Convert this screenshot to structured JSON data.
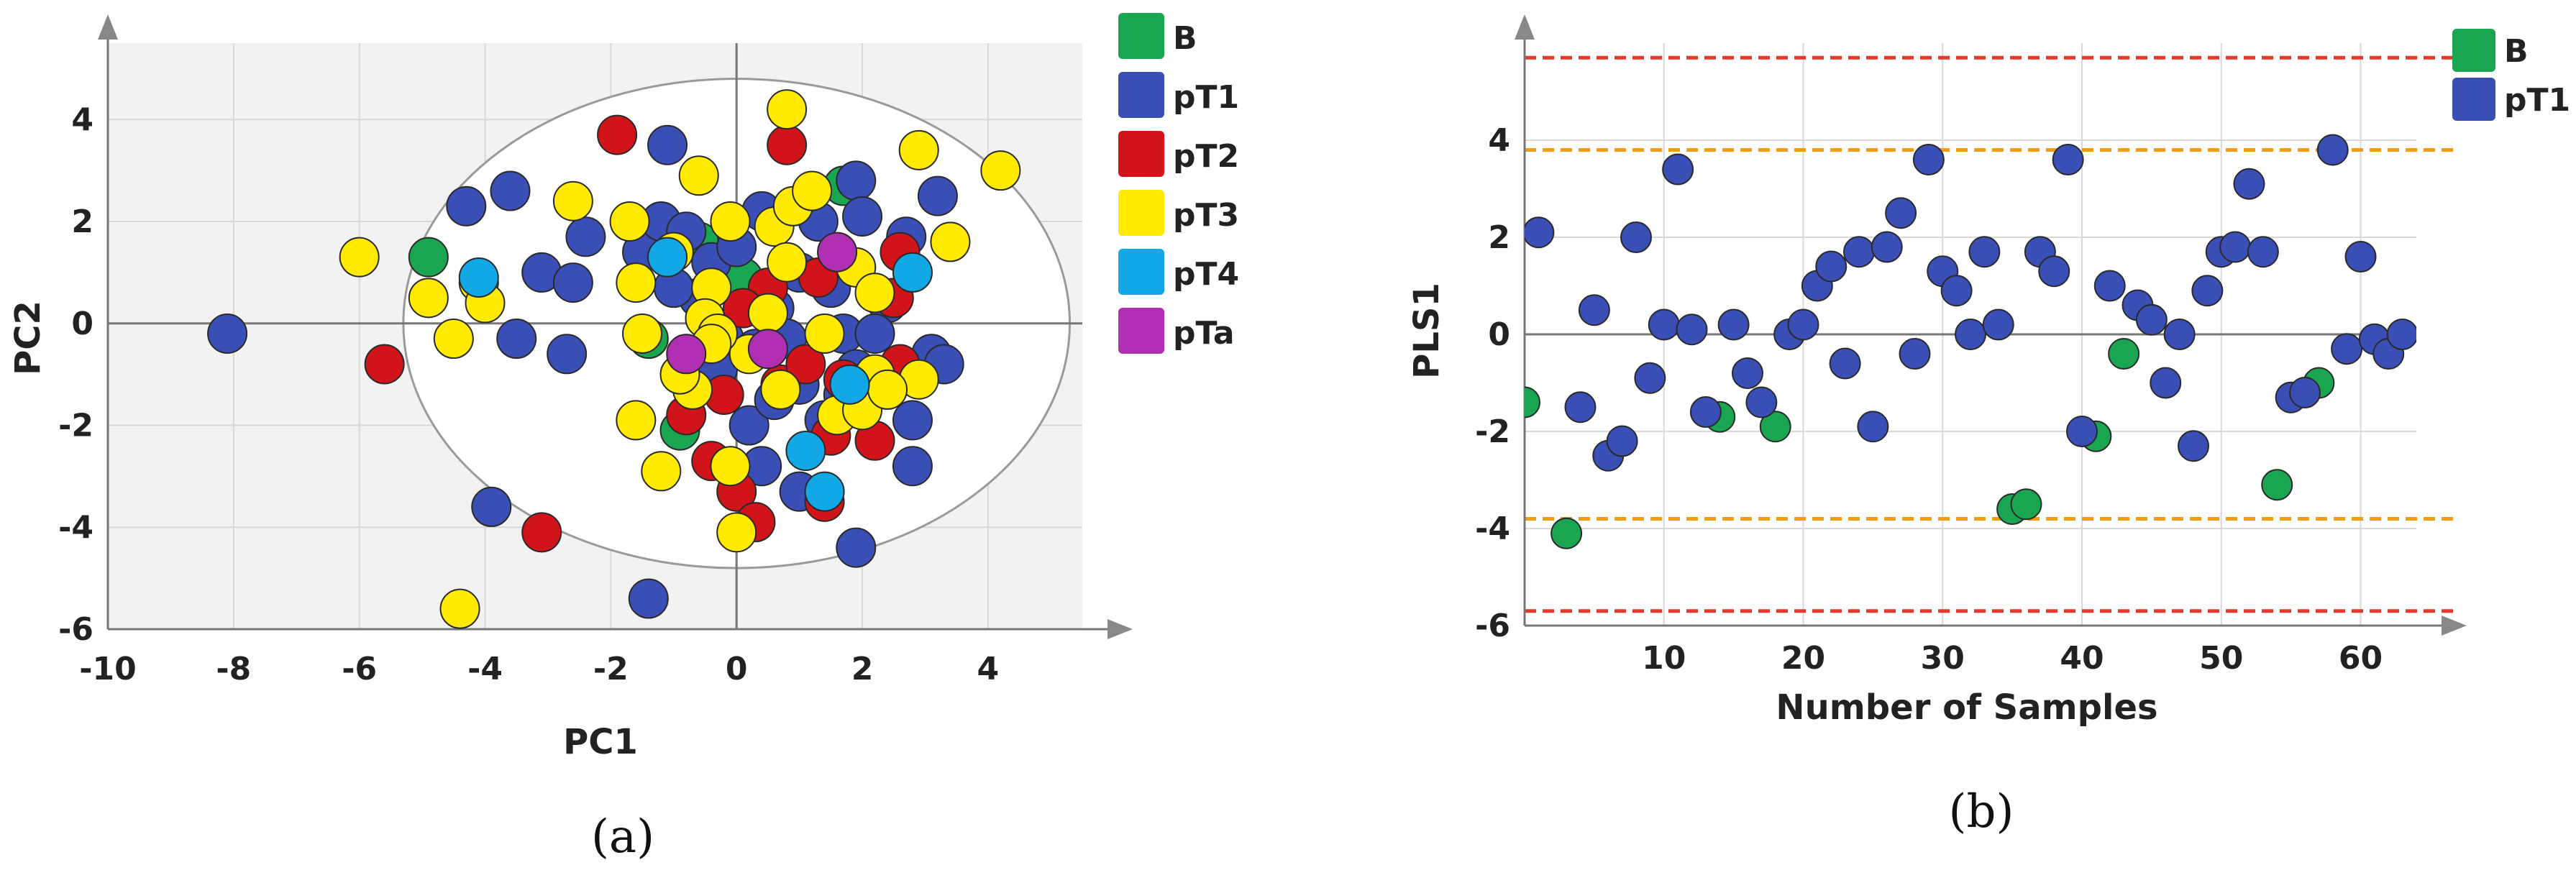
{
  "chart_data": [
    {
      "type": "scatter",
      "panel_label": "(a)",
      "xlabel": "PC1",
      "ylabel": "PC2",
      "xlim": [
        -10,
        5.5
      ],
      "ylim": [
        -6,
        5.5
      ],
      "xticks": [
        "-10",
        "-8",
        "-6",
        "-4",
        "-2",
        "0",
        "2",
        "4"
      ],
      "yticks": [
        "-6",
        "-4",
        "-2",
        "0",
        "2",
        "4"
      ],
      "grid": true,
      "confidence_ellipse": {
        "center": [
          0,
          0
        ],
        "radius_x": 5.3,
        "radius_y": 4.8
      },
      "legend_position": "right",
      "series": [
        {
          "name": "B",
          "color": "#1aa550",
          "points": [
            [
              -4.9,
              1.3
            ],
            [
              -1.4,
              -0.3
            ],
            [
              -0.9,
              -2.1
            ],
            [
              0.1,
              0.9
            ],
            [
              1.1,
              2.4
            ],
            [
              1.7,
              2.7
            ],
            [
              -0.6,
              1.6
            ]
          ]
        },
        {
          "name": "pT1",
          "color": "#3a4fb6",
          "points": [
            [
              -8.1,
              -0.2
            ],
            [
              -4.3,
              2.3
            ],
            [
              -3.6,
              2.6
            ],
            [
              -3.1,
              1.0
            ],
            [
              -2.6,
              0.8
            ],
            [
              -2.4,
              1.7
            ],
            [
              -2.7,
              -0.6
            ],
            [
              -3.5,
              -0.3
            ],
            [
              -1.5,
              1.4
            ],
            [
              -1.2,
              2.0
            ],
            [
              -1.1,
              3.5
            ],
            [
              -0.8,
              1.8
            ],
            [
              -0.6,
              0.5
            ],
            [
              -0.4,
              1.2
            ],
            [
              -0.2,
              -0.3
            ],
            [
              0.0,
              1.5
            ],
            [
              0.3,
              -0.5
            ],
            [
              0.4,
              2.2
            ],
            [
              0.6,
              0.3
            ],
            [
              0.8,
              -0.3
            ],
            [
              1.0,
              1.0
            ],
            [
              1.3,
              2.0
            ],
            [
              1.5,
              0.7
            ],
            [
              1.7,
              -0.2
            ],
            [
              1.9,
              2.8
            ],
            [
              2.0,
              2.1
            ],
            [
              2.4,
              0.4
            ],
            [
              2.7,
              1.7
            ],
            [
              3.2,
              2.5
            ],
            [
              3.1,
              -0.6
            ],
            [
              3.3,
              -0.8
            ],
            [
              2.8,
              -1.9
            ],
            [
              2.8,
              -2.8
            ],
            [
              0.2,
              -2.0
            ],
            [
              0.6,
              -1.5
            ],
            [
              1.0,
              -1.2
            ],
            [
              1.4,
              -1.9
            ],
            [
              1.9,
              -0.9
            ],
            [
              1.0,
              -3.3
            ],
            [
              1.9,
              -4.4
            ],
            [
              -1.4,
              -5.4
            ],
            [
              -3.9,
              -3.6
            ],
            [
              -1.0,
              0.7
            ],
            [
              -0.3,
              -0.9
            ],
            [
              0.4,
              -2.8
            ],
            [
              1.7,
              -1.4
            ],
            [
              2.2,
              -0.2
            ]
          ]
        },
        {
          "name": "pT2",
          "color": "#d0141a",
          "points": [
            [
              -5.6,
              -0.8
            ],
            [
              -3.1,
              -4.1
            ],
            [
              -1.9,
              3.7
            ],
            [
              0.8,
              3.5
            ],
            [
              0.5,
              0.7
            ],
            [
              1.3,
              0.9
            ],
            [
              2.5,
              0.5
            ],
            [
              -0.8,
              -1.8
            ],
            [
              -0.4,
              -2.7
            ],
            [
              0.0,
              -3.3
            ],
            [
              0.3,
              -3.9
            ],
            [
              1.4,
              -3.5
            ],
            [
              1.5,
              -2.2
            ],
            [
              2.2,
              -2.3
            ],
            [
              2.6,
              1.4
            ],
            [
              2.6,
              -0.8
            ],
            [
              0.7,
              -1.2
            ],
            [
              -0.2,
              -1.4
            ],
            [
              1.1,
              -0.8
            ],
            [
              0.1,
              0.3
            ],
            [
              1.7,
              -1.1
            ]
          ]
        },
        {
          "name": "pT3",
          "color": "#ffea00",
          "points": [
            [
              -6.0,
              1.3
            ],
            [
              -4.9,
              0.5
            ],
            [
              -4.1,
              0.8
            ],
            [
              -4.0,
              0.4
            ],
            [
              -4.5,
              -0.3
            ],
            [
              -2.6,
              2.4
            ],
            [
              -1.7,
              2.0
            ],
            [
              -1.6,
              0.8
            ],
            [
              -1.5,
              -0.2
            ],
            [
              -1.6,
              -1.9
            ],
            [
              -1.2,
              -2.9
            ],
            [
              -0.7,
              -1.3
            ],
            [
              -0.6,
              2.9
            ],
            [
              -0.4,
              0.7
            ],
            [
              -0.5,
              0.1
            ],
            [
              -0.1,
              2.0
            ],
            [
              0.2,
              -0.6
            ],
            [
              0.6,
              1.9
            ],
            [
              0.8,
              4.2
            ],
            [
              0.8,
              1.2
            ],
            [
              0.5,
              0.2
            ],
            [
              0.7,
              -1.3
            ],
            [
              0.0,
              -4.1
            ],
            [
              -0.1,
              -2.8
            ],
            [
              0.9,
              2.3
            ],
            [
              1.2,
              2.6
            ],
            [
              1.6,
              -1.8
            ],
            [
              1.9,
              1.1
            ],
            [
              2.2,
              0.6
            ],
            [
              2.2,
              -1.0
            ],
            [
              2.0,
              -1.7
            ],
            [
              2.9,
              3.4
            ],
            [
              2.9,
              -1.1
            ],
            [
              3.4,
              1.6
            ],
            [
              4.2,
              3.0
            ],
            [
              -4.4,
              -5.6
            ],
            [
              -0.9,
              -1.0
            ],
            [
              -1.0,
              1.4
            ],
            [
              -0.3,
              -0.2
            ],
            [
              1.4,
              -0.2
            ],
            [
              -0.4,
              -0.4
            ],
            [
              2.4,
              -1.3
            ]
          ]
        },
        {
          "name": "pT4",
          "color": "#12a8e6",
          "points": [
            [
              -4.1,
              0.9
            ],
            [
              2.8,
              1.0
            ],
            [
              1.8,
              -1.2
            ],
            [
              1.1,
              -2.5
            ],
            [
              1.4,
              -3.3
            ],
            [
              -1.1,
              1.3
            ]
          ]
        },
        {
          "name": "pTa",
          "color": "#b12fb3",
          "points": [
            [
              -0.8,
              -0.6
            ],
            [
              0.5,
              -0.5
            ],
            [
              1.6,
              1.4
            ]
          ]
        }
      ]
    },
    {
      "type": "scatter",
      "panel_label": "(b)",
      "xlabel": "Number of Samples",
      "ylabel": "PLS1",
      "xlim": [
        0,
        64
      ],
      "ylim": [
        -6,
        6
      ],
      "xticks": [
        "10",
        "20",
        "30",
        "40",
        "50",
        "60"
      ],
      "yticks": [
        "-6",
        "-4",
        "-2",
        "0",
        "2",
        "4"
      ],
      "grid": true,
      "reference_lines": [
        {
          "y": 5.7,
          "color": "#e53a2b",
          "style": "dashed"
        },
        {
          "y": -5.7,
          "color": "#e53a2b",
          "style": "dashed"
        },
        {
          "y": 3.8,
          "color": "#f39c12",
          "style": "dashed"
        },
        {
          "y": -3.8,
          "color": "#f39c12",
          "style": "dashed"
        }
      ],
      "legend_position": "right",
      "series": [
        {
          "name": "B",
          "color": "#1aa550",
          "points": [
            [
              0,
              -1.4
            ],
            [
              3,
              -4.1
            ],
            [
              14,
              -1.7
            ],
            [
              18,
              -1.9
            ],
            [
              35,
              -3.6
            ],
            [
              36,
              -3.5
            ],
            [
              41,
              -2.1
            ],
            [
              43,
              -0.4
            ],
            [
              54,
              -3.1
            ],
            [
              57,
              -1.0
            ]
          ]
        },
        {
          "name": "pT1",
          "color": "#3a4fb6",
          "points": [
            [
              1,
              2.1
            ],
            [
              4,
              -1.5
            ],
            [
              5,
              0.5
            ],
            [
              6,
              -2.5
            ],
            [
              7,
              -2.2
            ],
            [
              8,
              2.0
            ],
            [
              9,
              -0.9
            ],
            [
              10,
              0.2
            ],
            [
              11,
              3.4
            ],
            [
              12,
              0.1
            ],
            [
              13,
              -1.6
            ],
            [
              15,
              0.2
            ],
            [
              16,
              -0.8
            ],
            [
              17,
              -1.4
            ],
            [
              19,
              0.0
            ],
            [
              20,
              0.2
            ],
            [
              21,
              1.0
            ],
            [
              22,
              1.4
            ],
            [
              23,
              -0.6
            ],
            [
              24,
              1.7
            ],
            [
              25,
              -1.9
            ],
            [
              26,
              1.8
            ],
            [
              27,
              2.5
            ],
            [
              28,
              -0.4
            ],
            [
              29,
              3.6
            ],
            [
              30,
              1.3
            ],
            [
              31,
              0.9
            ],
            [
              32,
              0.0
            ],
            [
              33,
              1.7
            ],
            [
              34,
              0.2
            ],
            [
              37,
              1.7
            ],
            [
              38,
              1.3
            ],
            [
              39,
              3.6
            ],
            [
              40,
              -2.0
            ],
            [
              42,
              1.0
            ],
            [
              44,
              0.6
            ],
            [
              45,
              0.3
            ],
            [
              46,
              -1.0
            ],
            [
              47,
              0.0
            ],
            [
              48,
              -2.3
            ],
            [
              49,
              0.9
            ],
            [
              50,
              1.7
            ],
            [
              51,
              1.8
            ],
            [
              52,
              3.1
            ],
            [
              53,
              1.7
            ],
            [
              55,
              -1.3
            ],
            [
              56,
              -1.2
            ],
            [
              58,
              3.8
            ],
            [
              59,
              -0.3
            ],
            [
              60,
              1.6
            ],
            [
              61,
              -0.1
            ],
            [
              62,
              -0.4
            ],
            [
              63,
              0.0
            ]
          ]
        }
      ]
    }
  ]
}
